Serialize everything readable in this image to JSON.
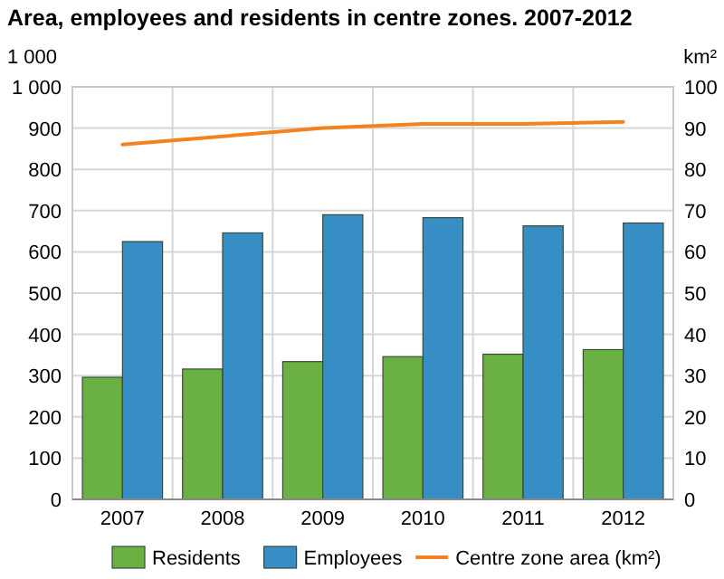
{
  "chart_data": {
    "type": "bar",
    "title": "Area, employees and residents in centre zones. 2007-2012",
    "ylabel": "1 000",
    "y2label": "km²",
    "categories": [
      "2007",
      "2008",
      "2009",
      "2010",
      "2011",
      "2012"
    ],
    "series": [
      {
        "name": "Residents",
        "color": "#6ab043",
        "values": [
          296,
          316,
          334,
          346,
          352,
          363
        ]
      },
      {
        "name": "Employees",
        "color": "#378ec4",
        "values": [
          625,
          646,
          690,
          683,
          663,
          670
        ]
      },
      {
        "name": "Centre zone area (km²)",
        "type": "line",
        "axis": "y2",
        "color": "#f58220",
        "values": [
          86,
          88,
          90,
          91,
          91,
          91.5
        ]
      }
    ],
    "ylim": [
      0,
      1000
    ],
    "yticks": [
      0,
      100,
      200,
      300,
      400,
      500,
      600,
      700,
      800,
      900,
      {
        "value": 1000,
        "label": "1 000"
      }
    ],
    "y2lim": [
      0,
      100
    ],
    "y2ticks": [
      0,
      10,
      20,
      30,
      40,
      50,
      60,
      70,
      80,
      90,
      100
    ],
    "grid": true,
    "legend": "bottom"
  }
}
